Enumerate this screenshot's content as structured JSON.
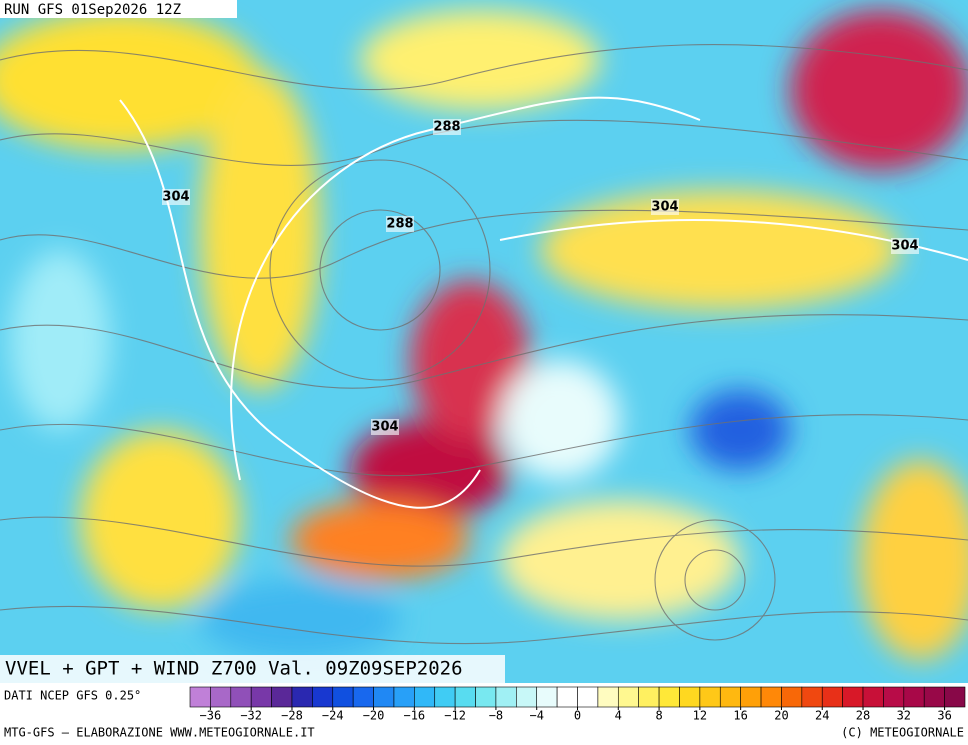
{
  "header": {
    "run": "RUN GFS 01Sep2026 12Z"
  },
  "map": {
    "contour_labels": [
      {
        "text": "288",
        "color": "#000000"
      },
      {
        "text": "288",
        "color": "#000000"
      },
      {
        "text": "304",
        "color": "#000000"
      },
      {
        "text": "304",
        "color": "#000000"
      },
      {
        "text": "304",
        "color": "#000000"
      },
      {
        "text": "304",
        "color": "#000000"
      }
    ],
    "title": "VVEL + GPT + WIND Z700 Val. 09Z09SEP2026"
  },
  "footer": {
    "source": "DATI NCEP GFS 0.25°",
    "credit": "MTG-GFS — ELABORAZIONE WWW.METEOGIORNALE.IT",
    "copyright": "(C) METEOGIORNALE"
  },
  "colorbar": {
    "labels": [
      "−36",
      "−32",
      "−28",
      "−24",
      "−20",
      "−16",
      "−12",
      "−8",
      "−4",
      "0",
      "4",
      "8",
      "12",
      "16",
      "20",
      "24",
      "28",
      "32",
      "36"
    ],
    "colors": [
      "#c080d8",
      "#a868c8",
      "#9050b8",
      "#7838a8",
      "#5a2898",
      "#2a28b0",
      "#1838d0",
      "#1050e0",
      "#1868ee",
      "#2088f4",
      "#28a0f8",
      "#30b8f8",
      "#40ccf4",
      "#58dcf0",
      "#78e8f0",
      "#a0f0f4",
      "#c8f8f8",
      "#e8fcfc",
      "#ffffff",
      "#ffffff",
      "#fffcc0",
      "#fff890",
      "#fff060",
      "#ffe838",
      "#ffd820",
      "#ffc818",
      "#ffb810",
      "#ffa008",
      "#ff8808",
      "#f86808",
      "#f04810",
      "#e83018",
      "#d81828",
      "#c81038",
      "#b80c48",
      "#a80848",
      "#980848",
      "#880848"
    ]
  }
}
